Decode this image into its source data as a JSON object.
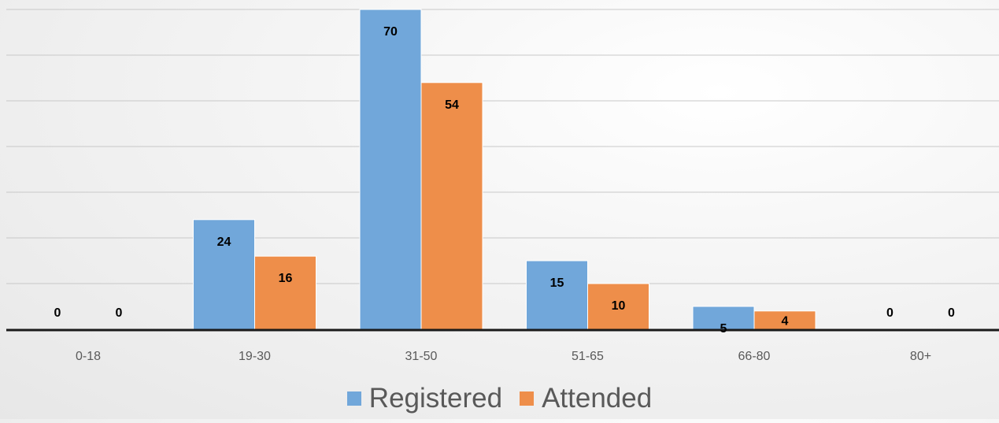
{
  "chart_data": {
    "type": "bar",
    "categories": [
      "0-18",
      "19-30",
      "31-50",
      "51-65",
      "66-80",
      "80+"
    ],
    "series": [
      {
        "name": "Registered",
        "values": [
          0,
          24,
          70,
          15,
          5,
          0
        ],
        "color": "#71A7DA"
      },
      {
        "name": "Attended",
        "values": [
          0,
          16,
          54,
          10,
          4,
          0
        ],
        "color": "#EE8E4A"
      }
    ],
    "ylim": [
      0,
      70
    ],
    "grid": true,
    "data_labels": true,
    "legend_position": "bottom"
  }
}
